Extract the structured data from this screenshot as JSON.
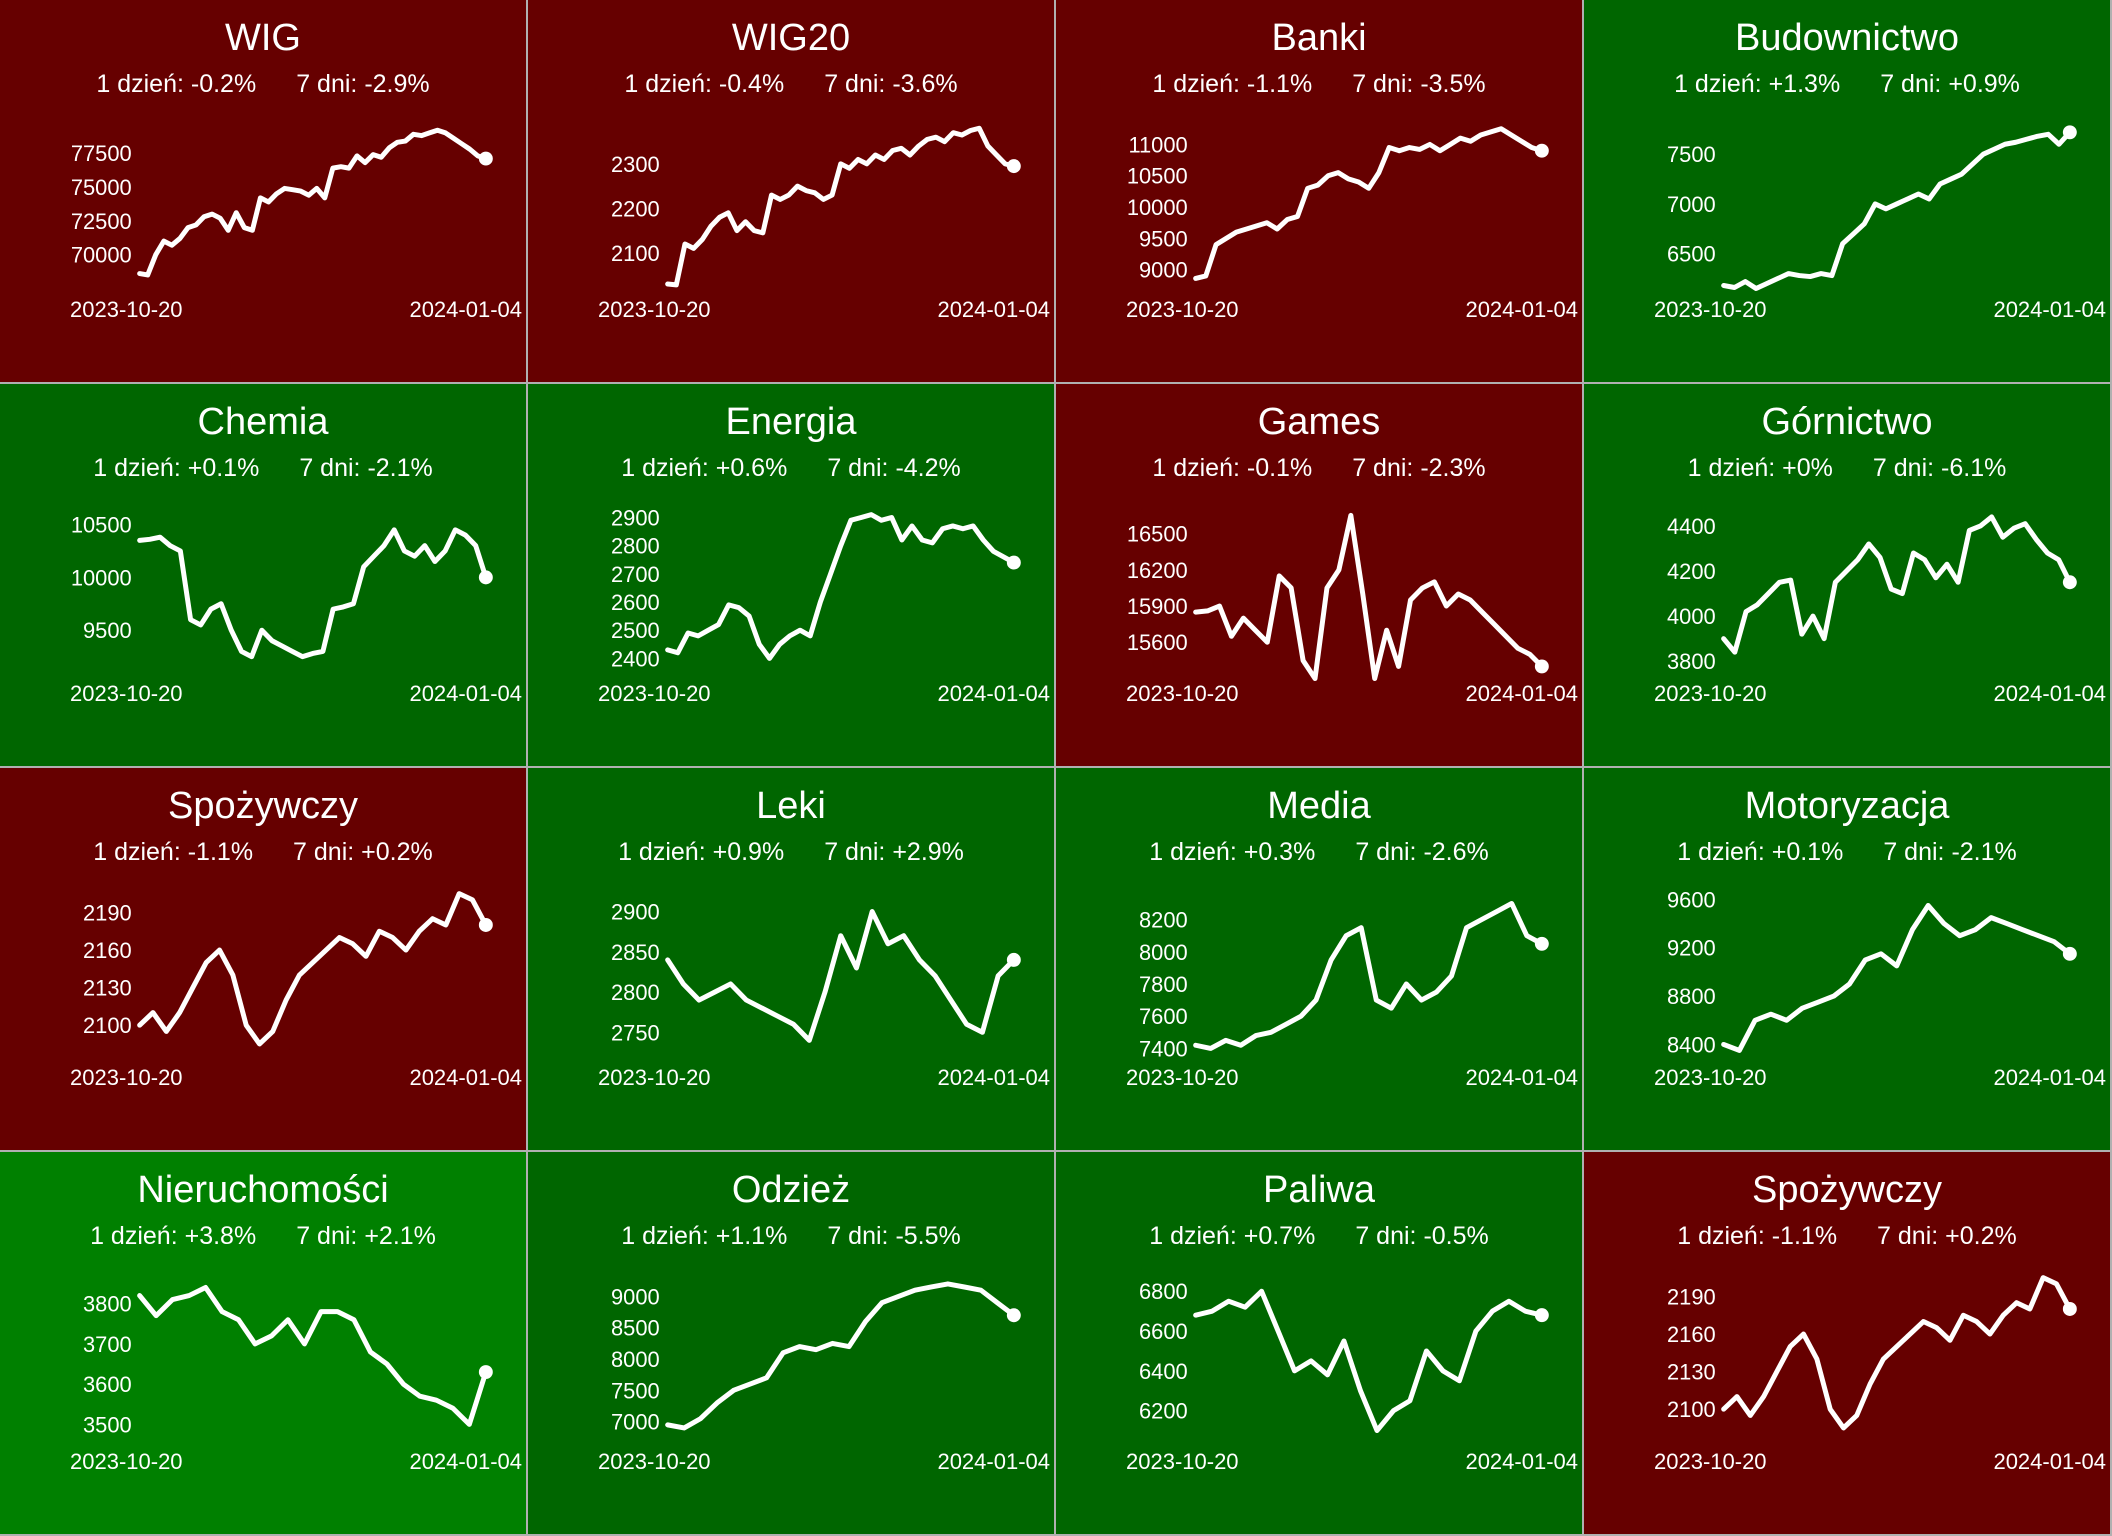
{
  "colors": {
    "down": "#660000",
    "up_weak": "#006600",
    "up_strong": "#008000",
    "line": "#ffffff",
    "grid_line": "#b0b0b0"
  },
  "labels": {
    "day": "1 dzień:",
    "week": "7 dni:"
  },
  "chart_data": [
    {
      "type": "line",
      "title": "WIG",
      "day_change": "-0.2%",
      "week_change": "-2.9%",
      "x_start": "2023-10-20",
      "x_end": "2024-01-04",
      "bg": "down",
      "yticks": [
        70000,
        72500,
        75000,
        77500
      ],
      "ylim": [
        67500,
        80000
      ],
      "values": [
        68600,
        68500,
        70000,
        71000,
        70700,
        71200,
        72000,
        72200,
        72800,
        73000,
        72700,
        71800,
        73100,
        72000,
        71800,
        74200,
        73900,
        74500,
        74900,
        74800,
        74700,
        74400,
        74900,
        74200,
        76400,
        76500,
        76400,
        77300,
        76800,
        77400,
        77200,
        77900,
        78300,
        78400,
        78900,
        78800,
        79000,
        79200,
        79000,
        78600,
        78200,
        77800,
        77300,
        77100
      ]
    },
    {
      "type": "line",
      "title": "WIG20",
      "day_change": "-0.4%",
      "week_change": "-3.6%",
      "x_start": "2023-10-20",
      "x_end": "2024-01-04",
      "bg": "down",
      "yticks": [
        2100,
        2200,
        2300
      ],
      "ylim": [
        2020,
        2400
      ],
      "values": [
        2030,
        2028,
        2120,
        2110,
        2130,
        2160,
        2180,
        2190,
        2150,
        2170,
        2150,
        2145,
        2230,
        2220,
        2230,
        2250,
        2240,
        2235,
        2220,
        2230,
        2300,
        2290,
        2310,
        2300,
        2320,
        2310,
        2330,
        2335,
        2320,
        2340,
        2355,
        2360,
        2350,
        2370,
        2365,
        2375,
        2380,
        2340,
        2320,
        2300,
        2295
      ]
    },
    {
      "type": "line",
      "title": "Banki",
      "day_change": "-1.1%",
      "week_change": "-3.5%",
      "x_start": "2023-10-20",
      "x_end": "2024-01-04",
      "bg": "down",
      "yticks": [
        9000,
        9500,
        10000,
        10500,
        11000
      ],
      "ylim": [
        8700,
        11400
      ],
      "values": [
        8860,
        8900,
        9400,
        9500,
        9600,
        9650,
        9700,
        9750,
        9650,
        9800,
        9850,
        10300,
        10350,
        10500,
        10550,
        10450,
        10400,
        10300,
        10550,
        10950,
        10900,
        10950,
        10920,
        11000,
        10900,
        11000,
        11100,
        11050,
        11150,
        11200,
        11250,
        11150,
        11050,
        10950,
        10900
      ]
    },
    {
      "type": "line",
      "title": "Budownictwo",
      "day_change": "+1.3%",
      "week_change": "+0.9%",
      "x_start": "2023-10-20",
      "x_end": "2024-01-04",
      "bg": "up_weak",
      "yticks": [
        6500,
        7000,
        7500
      ],
      "ylim": [
        6150,
        7850
      ],
      "values": [
        6180,
        6160,
        6220,
        6150,
        6200,
        6250,
        6300,
        6280,
        6270,
        6300,
        6280,
        6600,
        6700,
        6800,
        7000,
        6950,
        7000,
        7050,
        7100,
        7050,
        7200,
        7250,
        7300,
        7400,
        7500,
        7550,
        7600,
        7620,
        7650,
        7680,
        7700,
        7600,
        7720
      ]
    },
    {
      "type": "line",
      "title": "Chemia",
      "day_change": "+0.1%",
      "week_change": "-2.1%",
      "x_start": "2023-10-20",
      "x_end": "2024-01-04",
      "bg": "up_weak",
      "yticks": [
        9500,
        10000,
        10500
      ],
      "ylim": [
        9100,
        10700
      ],
      "values": [
        10350,
        10360,
        10380,
        10300,
        10250,
        9600,
        9550,
        9700,
        9750,
        9500,
        9300,
        9250,
        9500,
        9400,
        9350,
        9300,
        9250,
        9280,
        9300,
        9700,
        9720,
        9750,
        10100,
        10200,
        10300,
        10450,
        10250,
        10200,
        10300,
        10150,
        10250,
        10450,
        10400,
        10300,
        10000
      ]
    },
    {
      "type": "line",
      "title": "Energia",
      "day_change": "+0.6%",
      "week_change": "-4.2%",
      "x_start": "2023-10-20",
      "x_end": "2024-01-04",
      "bg": "up_weak",
      "yticks": [
        2400,
        2500,
        2600,
        2700,
        2800,
        2900
      ],
      "ylim": [
        2350,
        2950
      ],
      "values": [
        2430,
        2420,
        2490,
        2480,
        2500,
        2520,
        2590,
        2580,
        2550,
        2450,
        2400,
        2450,
        2480,
        2500,
        2480,
        2600,
        2700,
        2800,
        2890,
        2900,
        2910,
        2890,
        2900,
        2820,
        2870,
        2820,
        2810,
        2860,
        2870,
        2860,
        2870,
        2820,
        2780,
        2760,
        2740
      ]
    },
    {
      "type": "line",
      "title": "Games",
      "day_change": "-0.1%",
      "week_change": "-2.3%",
      "x_start": "2023-10-20",
      "x_end": "2024-01-04",
      "bg": "down",
      "yticks": [
        15600,
        15900,
        16200,
        16500
      ],
      "ylim": [
        15350,
        16750
      ],
      "values": [
        15850,
        15860,
        15900,
        15650,
        15800,
        15700,
        15600,
        16150,
        16050,
        15450,
        15300,
        16050,
        16200,
        16650,
        16000,
        15300,
        15700,
        15400,
        15950,
        16050,
        16100,
        15900,
        16000,
        15950,
        15850,
        15750,
        15650,
        15550,
        15500,
        15400
      ]
    },
    {
      "type": "line",
      "title": "Górnictwo",
      "day_change": "+0%",
      "week_change": "-6.1%",
      "x_start": "2023-10-20",
      "x_end": "2024-01-04",
      "bg": "up_weak",
      "yticks": [
        3800,
        4000,
        4200,
        4400
      ],
      "ylim": [
        3750,
        4500
      ],
      "values": [
        3900,
        3840,
        4020,
        4050,
        4100,
        4150,
        4160,
        3920,
        4000,
        3900,
        4150,
        4200,
        4250,
        4320,
        4260,
        4120,
        4100,
        4280,
        4250,
        4170,
        4230,
        4150,
        4380,
        4400,
        4440,
        4350,
        4390,
        4410,
        4340,
        4280,
        4250,
        4150
      ]
    },
    {
      "type": "line",
      "title": "Spożywczy",
      "day_change": "-1.1%",
      "week_change": "+0.2%",
      "x_start": "2023-10-20",
      "x_end": "2024-01-04",
      "bg": "down",
      "yticks": [
        2100,
        2130,
        2160,
        2190
      ],
      "ylim": [
        2075,
        2210
      ],
      "values": [
        2100,
        2110,
        2095,
        2110,
        2130,
        2150,
        2160,
        2140,
        2100,
        2085,
        2095,
        2120,
        2140,
        2150,
        2160,
        2170,
        2165,
        2155,
        2175,
        2170,
        2160,
        2175,
        2185,
        2180,
        2205,
        2200,
        2180
      ]
    },
    {
      "type": "line",
      "title": "Leki",
      "day_change": "+0.9%",
      "week_change": "+2.9%",
      "x_start": "2023-10-20",
      "x_end": "2024-01-04",
      "bg": "up_weak",
      "yticks": [
        2750,
        2800,
        2850,
        2900
      ],
      "ylim": [
        2720,
        2930
      ],
      "values": [
        2840,
        2810,
        2790,
        2800,
        2810,
        2790,
        2780,
        2770,
        2760,
        2740,
        2800,
        2870,
        2830,
        2900,
        2860,
        2870,
        2840,
        2820,
        2790,
        2760,
        2750,
        2820,
        2840
      ]
    },
    {
      "type": "line",
      "title": "Media",
      "day_change": "+0.3%",
      "week_change": "-2.6%",
      "x_start": "2023-10-20",
      "x_end": "2024-01-04",
      "bg": "up_weak",
      "yticks": [
        7400,
        7600,
        7800,
        8000,
        8200
      ],
      "ylim": [
        7350,
        8400
      ],
      "values": [
        7420,
        7400,
        7450,
        7420,
        7480,
        7500,
        7550,
        7600,
        7700,
        7950,
        8100,
        8150,
        7700,
        7650,
        7800,
        7700,
        7750,
        7850,
        8150,
        8200,
        8250,
        8300,
        8100,
        8050
      ]
    },
    {
      "type": "line",
      "title": "Motoryzacja",
      "day_change": "+0.1%",
      "week_change": "-2.1%",
      "x_start": "2023-10-20",
      "x_end": "2024-01-04",
      "bg": "up_weak",
      "yticks": [
        8400,
        8800,
        9200,
        9600
      ],
      "ylim": [
        8300,
        9700
      ],
      "values": [
        8400,
        8350,
        8600,
        8650,
        8600,
        8700,
        8750,
        8800,
        8900,
        9100,
        9150,
        9050,
        9350,
        9550,
        9400,
        9300,
        9350,
        9450,
        9400,
        9350,
        9300,
        9250,
        9150
      ]
    },
    {
      "type": "line",
      "title": "Nieruchomości",
      "day_change": "+3.8%",
      "week_change": "+2.1%",
      "x_start": "2023-10-20",
      "x_end": "2024-01-04",
      "bg": "up_strong",
      "yticks": [
        3500,
        3600,
        3700,
        3800
      ],
      "ylim": [
        3460,
        3880
      ],
      "values": [
        3820,
        3770,
        3810,
        3820,
        3840,
        3780,
        3760,
        3700,
        3720,
        3760,
        3700,
        3780,
        3780,
        3760,
        3680,
        3650,
        3600,
        3570,
        3560,
        3540,
        3500,
        3630
      ]
    },
    {
      "type": "line",
      "title": "Odzież",
      "day_change": "+1.1%",
      "week_change": "-5.5%",
      "x_start": "2023-10-20",
      "x_end": "2024-01-04",
      "bg": "up_weak",
      "yticks": [
        7000,
        7500,
        8000,
        8500,
        9000
      ],
      "ylim": [
        6700,
        9400
      ],
      "values": [
        6950,
        6900,
        7050,
        7300,
        7500,
        7600,
        7700,
        8100,
        8200,
        8150,
        8250,
        8200,
        8600,
        8900,
        9000,
        9100,
        9150,
        9200,
        9150,
        9100,
        8900,
        8700
      ]
    },
    {
      "type": "line",
      "title": "Paliwa",
      "day_change": "+0.7%",
      "week_change": "-0.5%",
      "x_start": "2023-10-20",
      "x_end": "2024-01-04",
      "bg": "up_weak",
      "yticks": [
        6200,
        6400,
        6600,
        6800
      ],
      "ylim": [
        6050,
        6900
      ],
      "values": [
        6680,
        6700,
        6750,
        6720,
        6800,
        6600,
        6400,
        6450,
        6380,
        6550,
        6300,
        6100,
        6200,
        6250,
        6500,
        6400,
        6350,
        6600,
        6700,
        6750,
        6700,
        6680
      ]
    },
    {
      "type": "line",
      "title": "Spożywczy",
      "day_change": "-1.1%",
      "week_change": "+0.2%",
      "x_start": "2023-10-20",
      "x_end": "2024-01-04",
      "bg": "down",
      "yticks": [
        2100,
        2130,
        2160,
        2190
      ],
      "ylim": [
        2075,
        2210
      ],
      "values": [
        2100,
        2110,
        2095,
        2110,
        2130,
        2150,
        2160,
        2140,
        2100,
        2085,
        2095,
        2120,
        2140,
        2150,
        2160,
        2170,
        2165,
        2155,
        2175,
        2170,
        2160,
        2175,
        2185,
        2180,
        2205,
        2200,
        2180
      ]
    }
  ]
}
